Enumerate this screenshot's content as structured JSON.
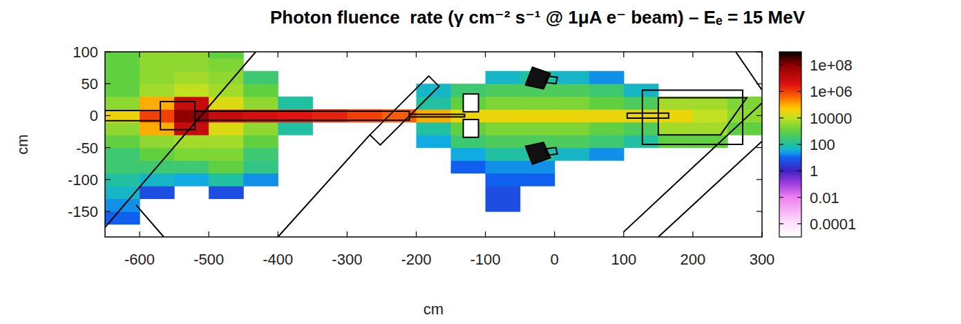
{
  "chart_data": {
    "type": "heatmap",
    "title": "Photon fluence  rate (γ cm⁻² s⁻¹ @ 1μA e⁻ beam) – Eₑ = 15 MeV",
    "xlabel": "cm",
    "ylabel": "cm",
    "xlim": [
      -650,
      300
    ],
    "ylim": [
      -190,
      100
    ],
    "xticks": [
      -600,
      -500,
      -400,
      -300,
      -200,
      -100,
      0,
      100,
      200,
      300
    ],
    "yticks": [
      -150,
      -100,
      -50,
      0,
      50,
      100
    ],
    "grid": false,
    "x_bins": [
      -650,
      -600,
      -550,
      -500,
      -450,
      -400,
      -350,
      -300,
      -250,
      -200,
      -150,
      -100,
      -50,
      0,
      50,
      100,
      150,
      200,
      250,
      300
    ],
    "y_bins": [
      -190,
      -170,
      -150,
      -130,
      -110,
      -90,
      -70,
      -50,
      -30,
      -10,
      10,
      30,
      50,
      70,
      90,
      100
    ],
    "cells": [
      [
        null,
        null,
        null,
        null,
        null,
        null,
        null,
        null,
        null,
        null,
        null,
        null,
        null,
        null,
        null,
        null,
        null,
        null,
        null
      ],
      [
        10,
        null,
        null,
        null,
        null,
        null,
        null,
        null,
        null,
        null,
        null,
        null,
        null,
        null,
        null,
        null,
        null,
        null,
        null
      ],
      [
        20,
        null,
        null,
        null,
        null,
        null,
        null,
        null,
        null,
        null,
        null,
        5,
        null,
        null,
        null,
        null,
        null,
        null,
        null
      ],
      [
        50,
        5,
        null,
        5,
        null,
        null,
        null,
        null,
        null,
        null,
        null,
        5,
        null,
        null,
        null,
        null,
        null,
        null,
        null
      ],
      [
        100,
        50,
        30,
        100,
        20,
        null,
        null,
        null,
        null,
        null,
        null,
        10,
        10,
        null,
        null,
        null,
        null,
        null,
        null
      ],
      [
        300,
        300,
        300,
        1000,
        200,
        null,
        null,
        null,
        null,
        null,
        10,
        20,
        20,
        null,
        null,
        null,
        null,
        null,
        null
      ],
      [
        300,
        1000,
        2000,
        2000,
        300,
        null,
        null,
        null,
        null,
        null,
        30,
        100,
        100,
        50,
        20,
        null,
        null,
        null,
        null
      ],
      [
        1000,
        3000,
        5000,
        5000,
        1000,
        null,
        null,
        null,
        null,
        30,
        300,
        500,
        500,
        500,
        300,
        100,
        1000,
        1000,
        null
      ],
      [
        3000,
        100000,
        10000000,
        20000,
        3000,
        100,
        null,
        null,
        null,
        100,
        1000,
        2000,
        2000,
        2000,
        1000,
        500,
        5000,
        5000,
        1000
      ],
      [
        30000,
        1000000,
        100000000,
        10000000,
        5000000,
        3000000,
        2000000,
        1000000,
        500000,
        100000,
        30000,
        30000,
        30000,
        30000,
        30000,
        30000,
        30000,
        10000,
        3000
      ],
      [
        3000,
        100000,
        10000000,
        20000,
        3000,
        100,
        null,
        null,
        null,
        100,
        1000,
        2000,
        2000,
        2000,
        1000,
        500,
        5000,
        5000,
        2000
      ],
      [
        1000,
        5000,
        10000,
        5000,
        1000,
        null,
        null,
        null,
        null,
        50,
        300,
        500,
        500,
        500,
        300,
        50,
        null,
        null,
        null
      ],
      [
        1000,
        3000,
        5000,
        3000,
        300,
        null,
        null,
        null,
        null,
        null,
        null,
        50,
        100,
        50,
        20,
        null,
        null,
        null,
        null
      ],
      [
        1000,
        3000,
        3000,
        2000,
        null,
        null,
        null,
        null,
        null,
        null,
        null,
        null,
        null,
        null,
        null,
        null,
        null,
        null,
        null
      ],
      [
        1000,
        3000,
        3000,
        1000,
        null,
        null,
        null,
        null,
        null,
        null,
        null,
        null,
        null,
        null,
        null,
        null,
        null,
        null,
        null
      ]
    ],
    "color_range": [
      1e-05,
      1000000000
    ],
    "color_ticks": [
      {
        "value": 100000000,
        "label": "1e+08"
      },
      {
        "value": 1000000,
        "label": "1e+06"
      },
      10000,
      100,
      1,
      0.01,
      0.0001
    ]
  }
}
